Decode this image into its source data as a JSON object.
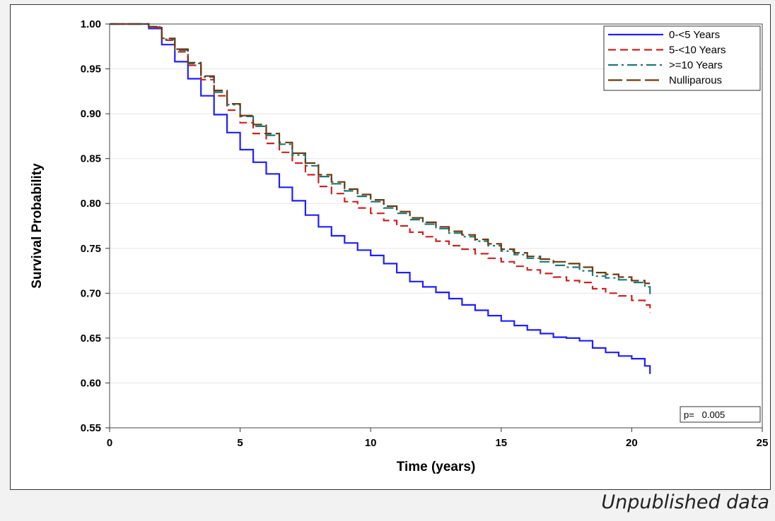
{
  "chart_data": {
    "type": "line",
    "title": "",
    "xlabel": "Time (years)",
    "ylabel": "Survival Probability",
    "xlim": [
      0,
      25
    ],
    "ylim": [
      0.55,
      1.0
    ],
    "xticks": [
      "0",
      "5",
      "10",
      "15",
      "20",
      "25"
    ],
    "yticks": [
      "0.55",
      "0.60",
      "0.65",
      "0.70",
      "0.75",
      "0.80",
      "0.85",
      "0.90",
      "0.95",
      "1.00"
    ],
    "grid": "horizontal",
    "legend_position": "top-right",
    "annotation": "p=   0.005",
    "series": [
      {
        "name": "0-<5 Years",
        "color": "#1f1fff",
        "style": "solid",
        "x": [
          0,
          1.0,
          1.5,
          2.0,
          2.5,
          3.0,
          3.5,
          4.0,
          4.5,
          5.0,
          5.5,
          6.0,
          6.5,
          7.0,
          7.5,
          8.0,
          8.5,
          9.0,
          9.5,
          10.0,
          10.5,
          11.0,
          11.5,
          12.0,
          12.5,
          13.0,
          13.5,
          14.0,
          14.5,
          15.0,
          15.5,
          16.0,
          16.5,
          17.0,
          17.5,
          18.0,
          18.5,
          19.0,
          19.5,
          20.0,
          20.5,
          20.7
        ],
        "y": [
          1.0,
          1.0,
          0.995,
          0.977,
          0.958,
          0.939,
          0.92,
          0.899,
          0.879,
          0.86,
          0.846,
          0.833,
          0.818,
          0.803,
          0.787,
          0.774,
          0.764,
          0.756,
          0.748,
          0.742,
          0.733,
          0.723,
          0.713,
          0.707,
          0.701,
          0.694,
          0.687,
          0.681,
          0.675,
          0.669,
          0.664,
          0.659,
          0.655,
          0.651,
          0.65,
          0.647,
          0.639,
          0.634,
          0.63,
          0.627,
          0.619,
          0.61
        ]
      },
      {
        "name": "5-<10 Years",
        "color": "#cc2222",
        "style": "dashed",
        "x": [
          0,
          1.0,
          1.5,
          2.0,
          2.5,
          3.0,
          3.5,
          4.0,
          4.5,
          5.0,
          5.5,
          6.0,
          6.5,
          7.0,
          7.5,
          8.0,
          8.5,
          9.0,
          9.5,
          10.0,
          10.5,
          11.0,
          11.5,
          12.0,
          12.5,
          13.0,
          13.5,
          14.0,
          14.5,
          15.0,
          15.5,
          16.0,
          16.5,
          17.0,
          17.5,
          18.0,
          18.5,
          19.0,
          19.5,
          20.0,
          20.5,
          20.7
        ],
        "y": [
          1.0,
          1.0,
          0.996,
          0.982,
          0.969,
          0.954,
          0.938,
          0.92,
          0.904,
          0.89,
          0.878,
          0.867,
          0.857,
          0.845,
          0.832,
          0.819,
          0.811,
          0.802,
          0.795,
          0.789,
          0.781,
          0.775,
          0.768,
          0.763,
          0.758,
          0.753,
          0.749,
          0.744,
          0.739,
          0.735,
          0.73,
          0.726,
          0.722,
          0.718,
          0.714,
          0.712,
          0.705,
          0.7,
          0.697,
          0.692,
          0.687,
          0.678
        ]
      },
      {
        "name": ">=10 Years",
        "color": "#1a7a73",
        "style": "dashdot",
        "x": [
          0,
          1.0,
          1.5,
          2.0,
          2.5,
          3.0,
          3.5,
          4.0,
          4.5,
          5.0,
          5.5,
          6.0,
          6.5,
          7.0,
          7.5,
          8.0,
          8.5,
          9.0,
          9.5,
          10.0,
          10.5,
          11.0,
          11.5,
          12.0,
          12.5,
          13.0,
          13.5,
          14.0,
          14.5,
          15.0,
          15.5,
          16.0,
          16.5,
          17.0,
          17.5,
          18.0,
          18.5,
          19.0,
          19.5,
          20.0,
          20.5,
          20.7
        ],
        "y": [
          1.0,
          1.0,
          0.997,
          0.983,
          0.971,
          0.956,
          0.941,
          0.924,
          0.91,
          0.897,
          0.886,
          0.876,
          0.866,
          0.854,
          0.842,
          0.83,
          0.822,
          0.814,
          0.808,
          0.802,
          0.795,
          0.789,
          0.782,
          0.777,
          0.772,
          0.767,
          0.763,
          0.758,
          0.753,
          0.747,
          0.743,
          0.739,
          0.735,
          0.731,
          0.729,
          0.725,
          0.719,
          0.717,
          0.715,
          0.712,
          0.707,
          0.699
        ]
      },
      {
        "name": "Nulliparous",
        "color": "#6b3a14",
        "style": "longdash",
        "x": [
          0,
          1.0,
          1.5,
          2.0,
          2.5,
          3.0,
          3.5,
          4.0,
          4.5,
          5.0,
          5.5,
          6.0,
          6.5,
          7.0,
          7.5,
          8.0,
          8.5,
          9.0,
          9.5,
          10.0,
          10.5,
          11.0,
          11.5,
          12.0,
          12.5,
          13.0,
          13.5,
          14.0,
          14.5,
          15.0,
          15.5,
          16.0,
          16.5,
          17.0,
          17.5,
          18.0,
          18.5,
          19.0,
          19.5,
          20.0,
          20.5,
          20.7
        ],
        "y": [
          1.0,
          1.0,
          0.997,
          0.984,
          0.972,
          0.957,
          0.942,
          0.926,
          0.911,
          0.898,
          0.888,
          0.878,
          0.868,
          0.856,
          0.845,
          0.832,
          0.824,
          0.816,
          0.81,
          0.804,
          0.797,
          0.791,
          0.784,
          0.779,
          0.774,
          0.769,
          0.765,
          0.76,
          0.755,
          0.749,
          0.745,
          0.741,
          0.738,
          0.735,
          0.733,
          0.729,
          0.723,
          0.721,
          0.718,
          0.714,
          0.711,
          0.711
        ]
      }
    ]
  },
  "footnote": "Unpublished data"
}
